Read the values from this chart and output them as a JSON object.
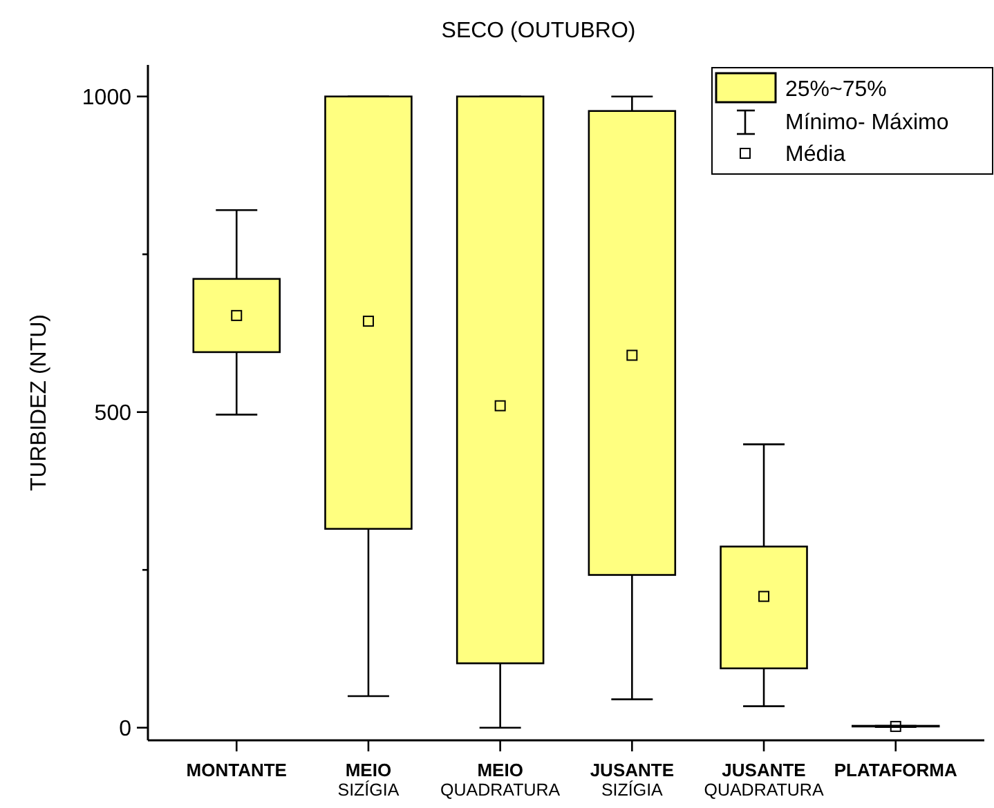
{
  "chart_data": {
    "type": "box",
    "title": "SECO (OUTUBRO)",
    "ylabel": "TURBIDEZ (NTU)",
    "categories": [
      "MONTANTE",
      "MEIO\nSIZÍGIA",
      "MEIO\nQUADRATURA",
      "JUSANTE\nSIZÍGIA",
      "JUSANTE\nQUADRATURA",
      "PLATAFORMA"
    ],
    "series": [
      {
        "name": "25%~75%",
        "color": "#ffff80",
        "boxes": [
          {
            "low": 496,
            "q1": 595,
            "q3": 711,
            "high": 820,
            "mean": 653
          },
          {
            "low": 50,
            "q1": 315,
            "q3": 1000,
            "high": 1000,
            "mean": 644
          },
          {
            "low": 0,
            "q1": 102,
            "q3": 1000,
            "high": 1000,
            "mean": 510
          },
          {
            "low": 45,
            "q1": 242,
            "q3": 977,
            "high": 1000,
            "mean": 590
          },
          {
            "low": 34,
            "q1": 94,
            "q3": 287,
            "high": 449,
            "mean": 208
          },
          {
            "low": 1,
            "q1": 2,
            "q3": 3,
            "high": 3,
            "mean": 2
          }
        ]
      }
    ],
    "annotations": [
      "Mínimo- Máximo",
      "Média"
    ],
    "ylim": [
      -20,
      1050
    ],
    "yticks": [
      0,
      {
        "value": 250,
        "label": null
      },
      500,
      {
        "value": 750,
        "label": null
      },
      1000
    ],
    "marker": "square",
    "legend": "top right",
    "grid": false
  }
}
